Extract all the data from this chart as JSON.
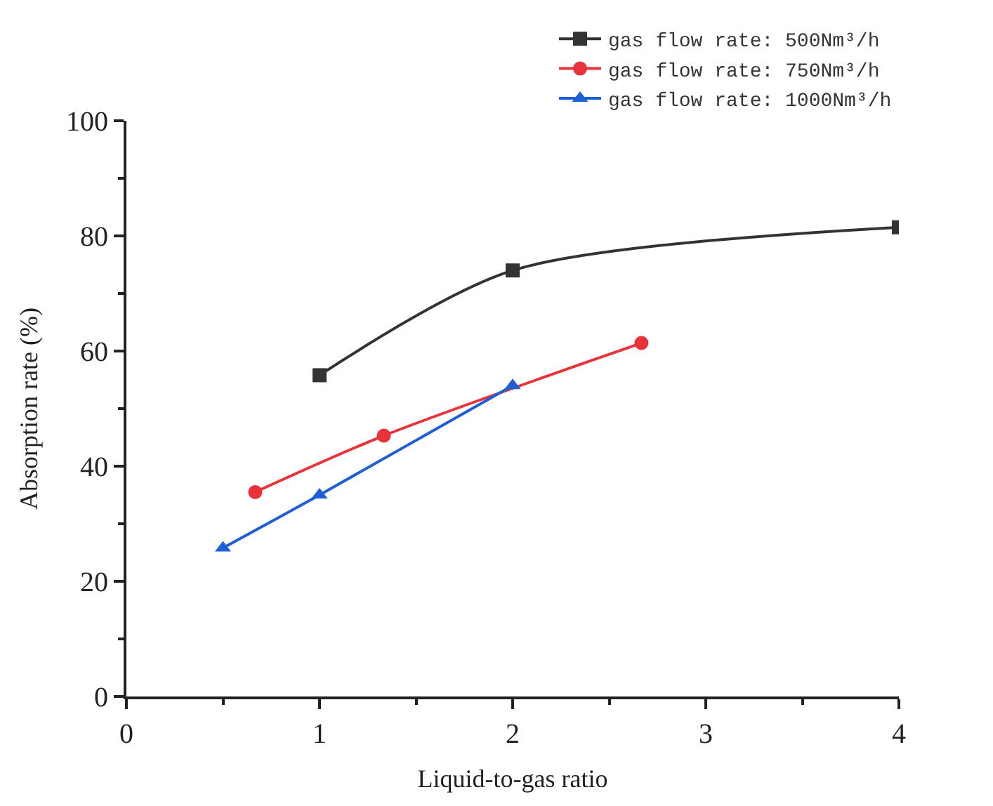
{
  "chart_data": {
    "type": "line",
    "xlabel": "Liquid-to-gas ratio",
    "ylabel": "Absorption rate (%)",
    "xlim": [
      0,
      4
    ],
    "xticks": [
      0,
      1,
      2,
      3,
      4
    ],
    "ylim": [
      0,
      100
    ],
    "yticks": [
      0,
      20,
      40,
      60,
      80,
      100
    ],
    "legend": "top right",
    "series": [
      {
        "name": "gas flow rate: 500Nm³/h",
        "color": "#333333",
        "marker": "square",
        "x": [
          1,
          2,
          4
        ],
        "values": [
          55.8,
          74,
          81.5
        ]
      },
      {
        "name": "gas flow rate: 750Nm³/h",
        "color": "#e8333a",
        "marker": "circle",
        "x": [
          0.667,
          1.333,
          2.667
        ],
        "values": [
          35.5,
          45.3,
          61.4
        ]
      },
      {
        "name": "gas flow rate: 1000Nm³/h",
        "color": "#1f5fd6",
        "marker": "triangle",
        "x": [
          0.5,
          1,
          2
        ],
        "values": [
          25.8,
          35,
          54
        ]
      }
    ]
  }
}
